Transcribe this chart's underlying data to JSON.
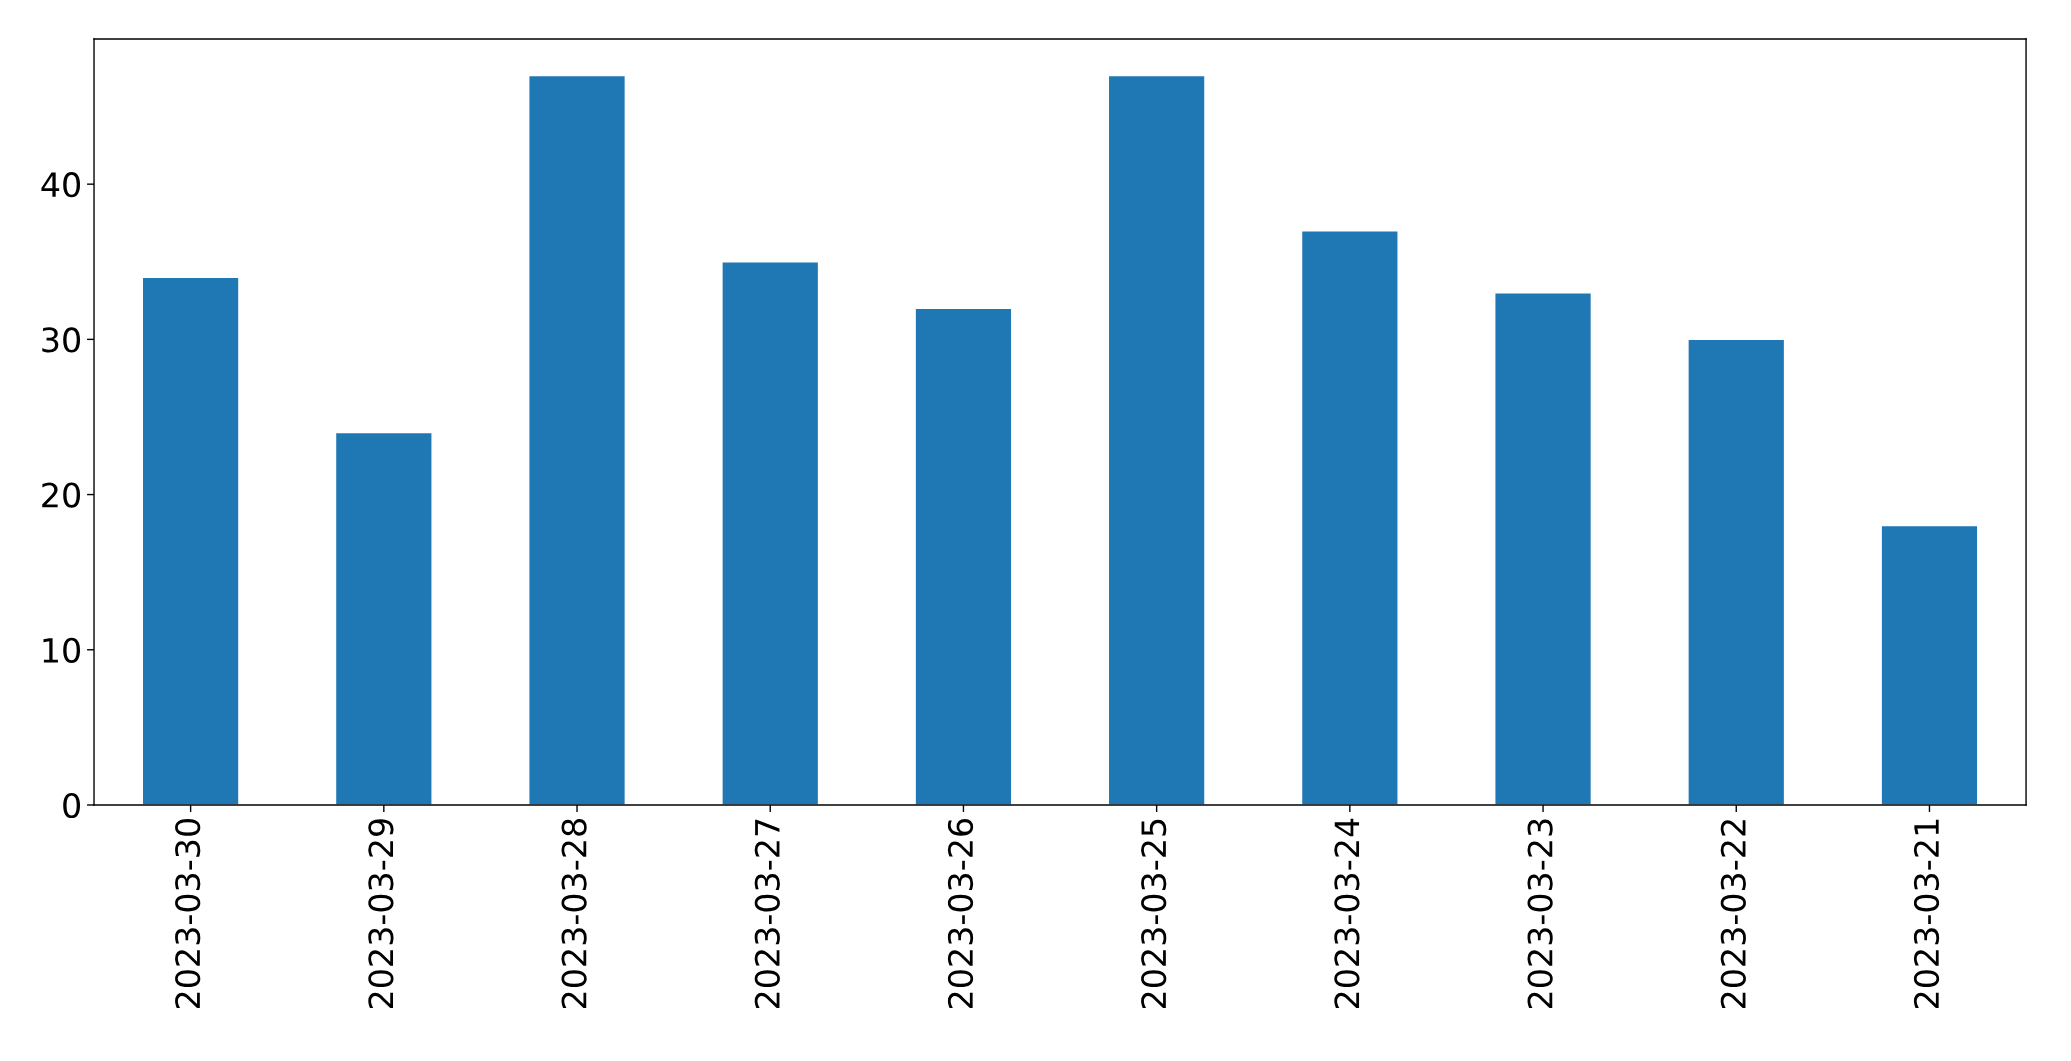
{
  "chart_data": {
    "type": "bar",
    "categories": [
      "2023-03-30",
      "2023-03-29",
      "2023-03-28",
      "2023-03-27",
      "2023-03-26",
      "2023-03-25",
      "2023-03-24",
      "2023-03-23",
      "2023-03-22",
      "2023-03-21"
    ],
    "values": [
      34,
      24,
      47,
      35,
      32,
      47,
      37,
      33,
      30,
      18
    ],
    "color": "#1f77b4",
    "ylim": [
      0,
      49.35
    ],
    "yticks": [
      0,
      10,
      20,
      30,
      40
    ],
    "grid": false,
    "legend": false
  }
}
